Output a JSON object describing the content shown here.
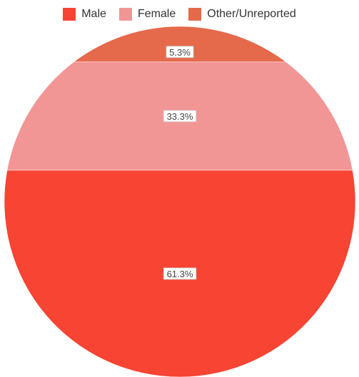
{
  "chart_data": {
    "type": "pie",
    "title": "",
    "categories": [
      "Male",
      "Female",
      "Other/Unreported"
    ],
    "values": [
      61.3,
      33.3,
      5.3
    ],
    "labels": [
      "61.3%",
      "33.3%",
      "5.3%"
    ],
    "colors": [
      "#f74433",
      "#f29595",
      "#e5694b"
    ],
    "legend_position": "top-center"
  }
}
